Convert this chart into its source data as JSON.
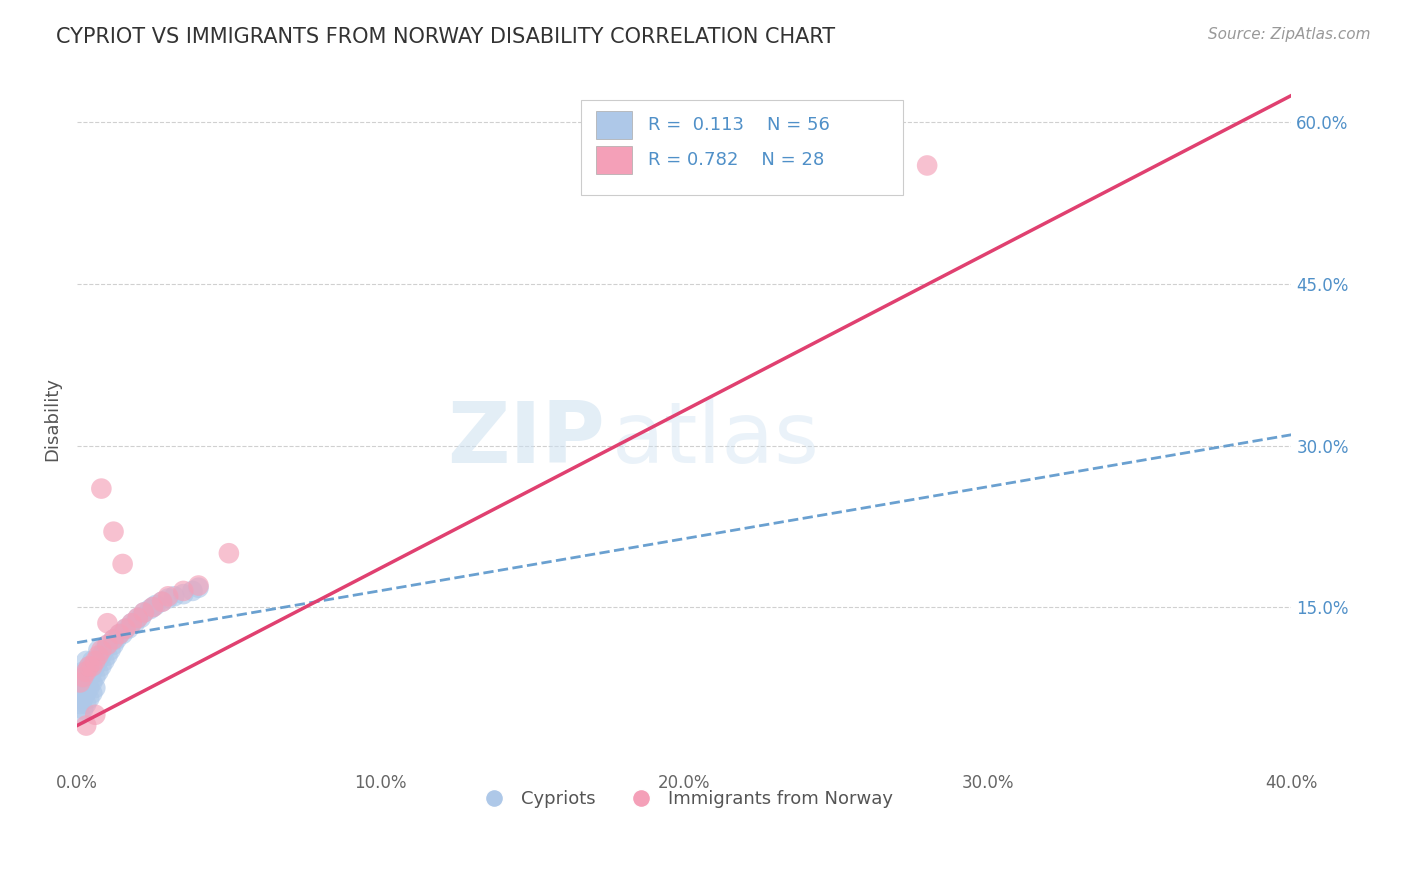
{
  "title": "CYPRIOT VS IMMIGRANTS FROM NORWAY DISABILITY CORRELATION CHART",
  "source": "Source: ZipAtlas.com",
  "ylabel": "Disability",
  "xlabel": "",
  "xlim": [
    0.0,
    0.4
  ],
  "ylim": [
    0.0,
    0.65
  ],
  "yticks": [
    0.15,
    0.3,
    0.45,
    0.6
  ],
  "ytick_labels": [
    "15.0%",
    "30.0%",
    "45.0%",
    "60.0%"
  ],
  "xticks": [
    0.0,
    0.1,
    0.2,
    0.3,
    0.4
  ],
  "xtick_labels": [
    "0.0%",
    "10.0%",
    "20.0%",
    "30.0%",
    "40.0%"
  ],
  "legend_label_bottom": [
    "Cypriots",
    "Immigrants from Norway"
  ],
  "blue_R": 0.113,
  "blue_N": 56,
  "pink_R": 0.782,
  "pink_N": 28,
  "blue_color": "#aec8e8",
  "pink_color": "#f4a0b8",
  "blue_line_color": "#5090c8",
  "pink_line_color": "#e04070",
  "watermark_zip": "ZIP",
  "watermark_atlas": "atlas",
  "blue_scatter_x": [
    0.001,
    0.001,
    0.001,
    0.002,
    0.002,
    0.002,
    0.002,
    0.003,
    0.003,
    0.003,
    0.003,
    0.004,
    0.004,
    0.004,
    0.005,
    0.005,
    0.005,
    0.006,
    0.006,
    0.007,
    0.007,
    0.007,
    0.008,
    0.008,
    0.009,
    0.009,
    0.01,
    0.01,
    0.011,
    0.012,
    0.012,
    0.013,
    0.014,
    0.015,
    0.016,
    0.017,
    0.018,
    0.019,
    0.02,
    0.021,
    0.022,
    0.024,
    0.025,
    0.026,
    0.028,
    0.03,
    0.032,
    0.035,
    0.038,
    0.04,
    0.001,
    0.002,
    0.003,
    0.004,
    0.005,
    0.006
  ],
  "blue_scatter_y": [
    0.06,
    0.07,
    0.08,
    0.065,
    0.075,
    0.085,
    0.09,
    0.07,
    0.08,
    0.09,
    0.1,
    0.075,
    0.085,
    0.095,
    0.08,
    0.09,
    0.1,
    0.085,
    0.095,
    0.09,
    0.1,
    0.11,
    0.095,
    0.105,
    0.1,
    0.11,
    0.105,
    0.115,
    0.11,
    0.115,
    0.12,
    0.12,
    0.125,
    0.125,
    0.13,
    0.13,
    0.135,
    0.135,
    0.14,
    0.14,
    0.145,
    0.148,
    0.15,
    0.152,
    0.155,
    0.158,
    0.16,
    0.162,
    0.165,
    0.168,
    0.05,
    0.055,
    0.06,
    0.065,
    0.07,
    0.075
  ],
  "pink_scatter_x": [
    0.001,
    0.002,
    0.003,
    0.004,
    0.005,
    0.006,
    0.007,
    0.008,
    0.01,
    0.012,
    0.014,
    0.016,
    0.018,
    0.02,
    0.022,
    0.025,
    0.028,
    0.03,
    0.035,
    0.04,
    0.008,
    0.012,
    0.015,
    0.05,
    0.28,
    0.01,
    0.006,
    0.003
  ],
  "pink_scatter_y": [
    0.08,
    0.085,
    0.09,
    0.095,
    0.095,
    0.1,
    0.105,
    0.11,
    0.115,
    0.12,
    0.125,
    0.13,
    0.135,
    0.14,
    0.145,
    0.15,
    0.155,
    0.16,
    0.165,
    0.17,
    0.26,
    0.22,
    0.19,
    0.2,
    0.56,
    0.135,
    0.05,
    0.04
  ],
  "blue_line_x": [
    0.0,
    0.4
  ],
  "blue_line_y": [
    0.117,
    0.31
  ],
  "pink_line_x": [
    0.0,
    0.4
  ],
  "pink_line_y": [
    0.04,
    0.625
  ]
}
